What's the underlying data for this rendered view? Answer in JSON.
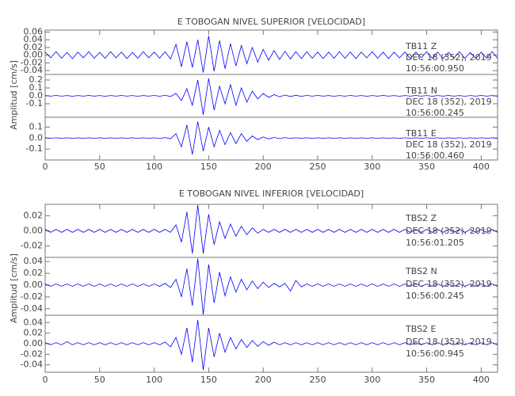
{
  "chart_data": [
    {
      "type": "line",
      "title": "E TOBOGAN NIVEL SUPERIOR [VELOCIDAD]",
      "y_label": "Amplitud [cm/s]",
      "xlim": [
        0,
        415
      ],
      "xticks": [
        0,
        50,
        100,
        150,
        200,
        250,
        300,
        350,
        400
      ],
      "x": [
        0,
        5,
        10,
        15,
        20,
        25,
        30,
        35,
        40,
        45,
        50,
        55,
        60,
        65,
        70,
        75,
        80,
        85,
        90,
        95,
        100,
        105,
        110,
        115,
        120,
        125,
        130,
        135,
        140,
        145,
        150,
        155,
        160,
        165,
        170,
        175,
        180,
        185,
        190,
        195,
        200,
        205,
        210,
        215,
        220,
        225,
        230,
        235,
        240,
        245,
        250,
        255,
        260,
        265,
        270,
        275,
        280,
        285,
        290,
        295,
        300,
        305,
        310,
        315,
        320,
        325,
        330,
        335,
        340,
        345,
        350,
        355,
        360,
        365,
        370,
        375,
        380,
        385,
        390,
        395,
        400,
        405,
        410,
        415
      ],
      "panels": [
        {
          "name": "TB11   Z",
          "date": "DEC 18 (352), 2019",
          "time": "10:56:00.950",
          "color": "#0000ff",
          "ylim": [
            -0.05,
            0.065
          ],
          "yticks": [
            0.06,
            0.04,
            0.02,
            {
              "value": 0,
              "label": "0.00"
            },
            -0.02,
            -0.04
          ],
          "values": [
            0.008,
            -0.007,
            0.009,
            -0.008,
            0.007,
            -0.009,
            0.008,
            -0.007,
            0.009,
            -0.008,
            0.007,
            -0.008,
            0.009,
            -0.007,
            0.008,
            -0.009,
            0.007,
            -0.008,
            0.009,
            -0.007,
            0.008,
            -0.008,
            0.009,
            -0.01,
            0.028,
            -0.03,
            0.035,
            -0.032,
            0.04,
            -0.045,
            0.05,
            -0.042,
            0.038,
            -0.035,
            0.03,
            -0.028,
            0.025,
            -0.022,
            0.02,
            -0.018,
            0.015,
            -0.013,
            0.012,
            -0.011,
            0.01,
            -0.01,
            0.009,
            -0.009,
            0.009,
            -0.008,
            0.008,
            -0.009,
            0.008,
            -0.008,
            0.009,
            -0.008,
            0.008,
            -0.009,
            0.008,
            -0.007,
            0.009,
            -0.008,
            0.008,
            -0.009,
            0.008,
            -0.007,
            0.008,
            -0.009,
            0.008,
            -0.007,
            0.009,
            -0.008,
            0.008,
            -0.009,
            0.007,
            -0.008,
            0.009,
            -0.008,
            0.007,
            -0.009,
            0.008,
            -0.008,
            0.009,
            -0.008
          ]
        },
        {
          "name": "TB11   N",
          "date": "DEC 18 (352), 2019",
          "time": "10:56:00.245",
          "color": "#0000ff",
          "ylim": [
            -0.27,
            0.27
          ],
          "yticks": [
            0.2,
            0.1,
            {
              "value": 0,
              "label": "0.0"
            },
            -0.1
          ],
          "values": [
            0.004,
            -0.004,
            0.005,
            -0.004,
            0.004,
            -0.005,
            0.004,
            -0.004,
            0.005,
            -0.004,
            0.004,
            -0.005,
            0.004,
            -0.004,
            0.005,
            -0.004,
            0.004,
            -0.005,
            0.004,
            -0.004,
            0.005,
            -0.005,
            0.006,
            -0.008,
            0.03,
            -0.06,
            0.09,
            -0.12,
            0.2,
            -0.24,
            0.22,
            -0.18,
            0.12,
            -0.1,
            0.14,
            -0.12,
            0.1,
            -0.08,
            0.06,
            -0.04,
            0.03,
            -0.02,
            0.015,
            -0.012,
            0.01,
            -0.008,
            0.007,
            -0.006,
            0.005,
            -0.004,
            0.005,
            -0.004,
            0.004,
            -0.005,
            0.004,
            -0.004,
            0.005,
            -0.004,
            0.004,
            -0.005,
            0.004,
            -0.004,
            0.005,
            -0.004,
            0.004,
            -0.005,
            0.004,
            -0.004,
            0.005,
            -0.004,
            0.004,
            -0.005,
            0.004,
            -0.004,
            0.005,
            -0.004,
            0.004,
            -0.005,
            0.004,
            -0.004,
            0.005,
            -0.004,
            0.004,
            -0.005
          ]
        },
        {
          "name": "TB11   E",
          "date": "DEC 18 (352), 2019",
          "time": "10:56:00.460",
          "color": "#0000ff",
          "ylim": [
            -0.2,
            0.19
          ],
          "yticks": [
            0.1,
            {
              "value": 0,
              "label": "0.0"
            },
            -0.1
          ],
          "values": [
            0.003,
            -0.003,
            0.003,
            -0.003,
            0.003,
            -0.003,
            0.003,
            -0.003,
            0.003,
            -0.003,
            0.003,
            -0.003,
            0.003,
            -0.003,
            0.003,
            -0.003,
            0.003,
            -0.003,
            0.003,
            -0.003,
            0.003,
            -0.004,
            0.005,
            -0.006,
            0.04,
            -0.08,
            0.12,
            -0.15,
            0.15,
            -0.12,
            0.1,
            -0.08,
            0.07,
            -0.06,
            0.05,
            -0.05,
            0.04,
            -0.03,
            0.02,
            -0.015,
            0.01,
            -0.008,
            0.006,
            -0.005,
            0.004,
            -0.003,
            0.003,
            -0.003,
            0.003,
            -0.003,
            0.003,
            -0.003,
            0.003,
            -0.003,
            0.003,
            -0.003,
            0.003,
            -0.003,
            0.003,
            -0.003,
            0.003,
            -0.003,
            0.003,
            -0.003,
            0.003,
            -0.003,
            0.003,
            -0.003,
            0.003,
            -0.003,
            0.003,
            -0.003,
            0.003,
            -0.003,
            0.003,
            -0.003,
            0.003,
            -0.003,
            0.003,
            -0.003,
            0.003,
            -0.003,
            0.003,
            -0.003
          ]
        }
      ]
    },
    {
      "type": "line",
      "title": "E TOBOGAN NIVEL INFERIOR [VELOCIDAD]",
      "y_label": "Amplitud [cm/s]",
      "xlim": [
        0,
        415
      ],
      "xticks": [
        0,
        50,
        100,
        150,
        200,
        250,
        300,
        350,
        400
      ],
      "x": [
        0,
        5,
        10,
        15,
        20,
        25,
        30,
        35,
        40,
        45,
        50,
        55,
        60,
        65,
        70,
        75,
        80,
        85,
        90,
        95,
        100,
        105,
        110,
        115,
        120,
        125,
        130,
        135,
        140,
        145,
        150,
        155,
        160,
        165,
        170,
        175,
        180,
        185,
        190,
        195,
        200,
        205,
        210,
        215,
        220,
        225,
        230,
        235,
        240,
        245,
        250,
        255,
        260,
        265,
        270,
        275,
        280,
        285,
        290,
        295,
        300,
        305,
        310,
        315,
        320,
        325,
        330,
        335,
        340,
        345,
        350,
        355,
        360,
        365,
        370,
        375,
        380,
        385,
        390,
        395,
        400,
        405,
        410,
        415
      ],
      "panels": [
        {
          "name": "TBS2   Z",
          "date": "DEC 18 (352), 2019",
          "time": "10:56:01.205",
          "color": "#0000ff",
          "ylim": [
            -0.035,
            0.035
          ],
          "yticks": [
            0.02,
            {
              "value": 0,
              "label": "0.00"
            },
            -0.02
          ],
          "values": [
            0.002,
            -0.002,
            0.002,
            -0.002,
            0.002,
            -0.002,
            0.002,
            -0.002,
            0.002,
            -0.002,
            0.002,
            -0.002,
            0.002,
            -0.002,
            0.002,
            -0.002,
            0.002,
            -0.002,
            0.002,
            -0.002,
            0.002,
            -0.002,
            0.002,
            -0.002,
            0.008,
            -0.015,
            0.025,
            -0.03,
            0.034,
            -0.03,
            0.022,
            -0.018,
            0.012,
            -0.01,
            0.009,
            -0.007,
            0.006,
            -0.005,
            0.004,
            -0.003,
            0.002,
            -0.002,
            0.002,
            -0.002,
            0.002,
            -0.002,
            0.002,
            -0.002,
            0.002,
            -0.002,
            0.002,
            -0.002,
            0.002,
            -0.002,
            0.002,
            -0.002,
            0.002,
            -0.002,
            0.002,
            -0.002,
            0.002,
            -0.002,
            0.002,
            -0.002,
            0.002,
            -0.002,
            0.002,
            -0.002,
            0.002,
            -0.002,
            0.002,
            -0.002,
            0.002,
            -0.002,
            0.002,
            -0.002,
            0.002,
            -0.002,
            0.002,
            -0.002,
            0.002,
            -0.002,
            0.002,
            -0.002
          ]
        },
        {
          "name": "TBS2   N",
          "date": "DEC 18 (352), 2019",
          "time": "10:56:00.245",
          "color": "#0000ff",
          "ylim": [
            -0.051,
            0.047
          ],
          "yticks": [
            0.04,
            0.02,
            {
              "value": 0,
              "label": "0.00"
            },
            -0.02,
            -0.04
          ],
          "values": [
            0.002,
            -0.002,
            0.002,
            -0.002,
            0.002,
            -0.002,
            0.002,
            -0.002,
            0.002,
            -0.002,
            0.002,
            -0.002,
            0.002,
            -0.002,
            0.002,
            -0.002,
            0.002,
            -0.002,
            0.002,
            -0.002,
            0.002,
            -0.002,
            0.003,
            -0.004,
            0.01,
            -0.02,
            0.028,
            -0.035,
            0.045,
            -0.05,
            0.035,
            -0.03,
            0.022,
            -0.018,
            0.014,
            -0.012,
            0.01,
            -0.008,
            0.007,
            -0.006,
            0.005,
            -0.004,
            0.003,
            -0.003,
            0.003,
            -0.01,
            0.008,
            -0.003,
            0.002,
            -0.002,
            0.002,
            -0.002,
            0.002,
            -0.002,
            0.002,
            -0.002,
            0.002,
            -0.002,
            0.002,
            -0.002,
            0.002,
            -0.002,
            0.002,
            -0.002,
            0.002,
            -0.002,
            0.002,
            -0.002,
            0.002,
            -0.002,
            0.002,
            -0.002,
            0.002,
            -0.002,
            0.002,
            -0.002,
            0.002,
            -0.002,
            0.002,
            -0.002,
            0.002,
            -0.002,
            0.002,
            -0.002
          ]
        },
        {
          "name": "TBS2   E",
          "date": "DEC 18 (352), 2019",
          "time": "10:56:00.945",
          "color": "#0000ff",
          "ylim": [
            -0.054,
            0.054
          ],
          "yticks": [
            0.04,
            0.02,
            {
              "value": 0,
              "label": "0.00"
            },
            -0.02,
            -0.04
          ],
          "values": [
            0.002,
            -0.002,
            0.002,
            -0.002,
            0.004,
            -0.002,
            0.002,
            -0.002,
            0.002,
            -0.002,
            0.002,
            -0.002,
            0.002,
            -0.002,
            0.002,
            -0.002,
            0.002,
            -0.002,
            0.002,
            -0.002,
            0.002,
            -0.002,
            0.003,
            -0.006,
            0.012,
            -0.02,
            0.03,
            -0.035,
            0.045,
            -0.05,
            0.03,
            -0.025,
            0.02,
            -0.016,
            0.012,
            -0.01,
            0.008,
            -0.007,
            0.006,
            -0.005,
            0.004,
            -0.003,
            0.003,
            -0.002,
            0.002,
            -0.002,
            0.002,
            -0.002,
            0.002,
            -0.002,
            0.002,
            -0.002,
            0.002,
            -0.002,
            0.002,
            -0.002,
            0.002,
            -0.002,
            0.002,
            -0.002,
            0.002,
            -0.002,
            0.002,
            -0.002,
            0.002,
            -0.002,
            0.002,
            -0.002,
            0.002,
            -0.002,
            0.002,
            -0.002,
            0.002,
            -0.002,
            0.002,
            -0.002,
            0.002,
            -0.002,
            0.002,
            -0.002,
            0.002,
            -0.002,
            0.002,
            -0.002
          ]
        }
      ]
    }
  ]
}
